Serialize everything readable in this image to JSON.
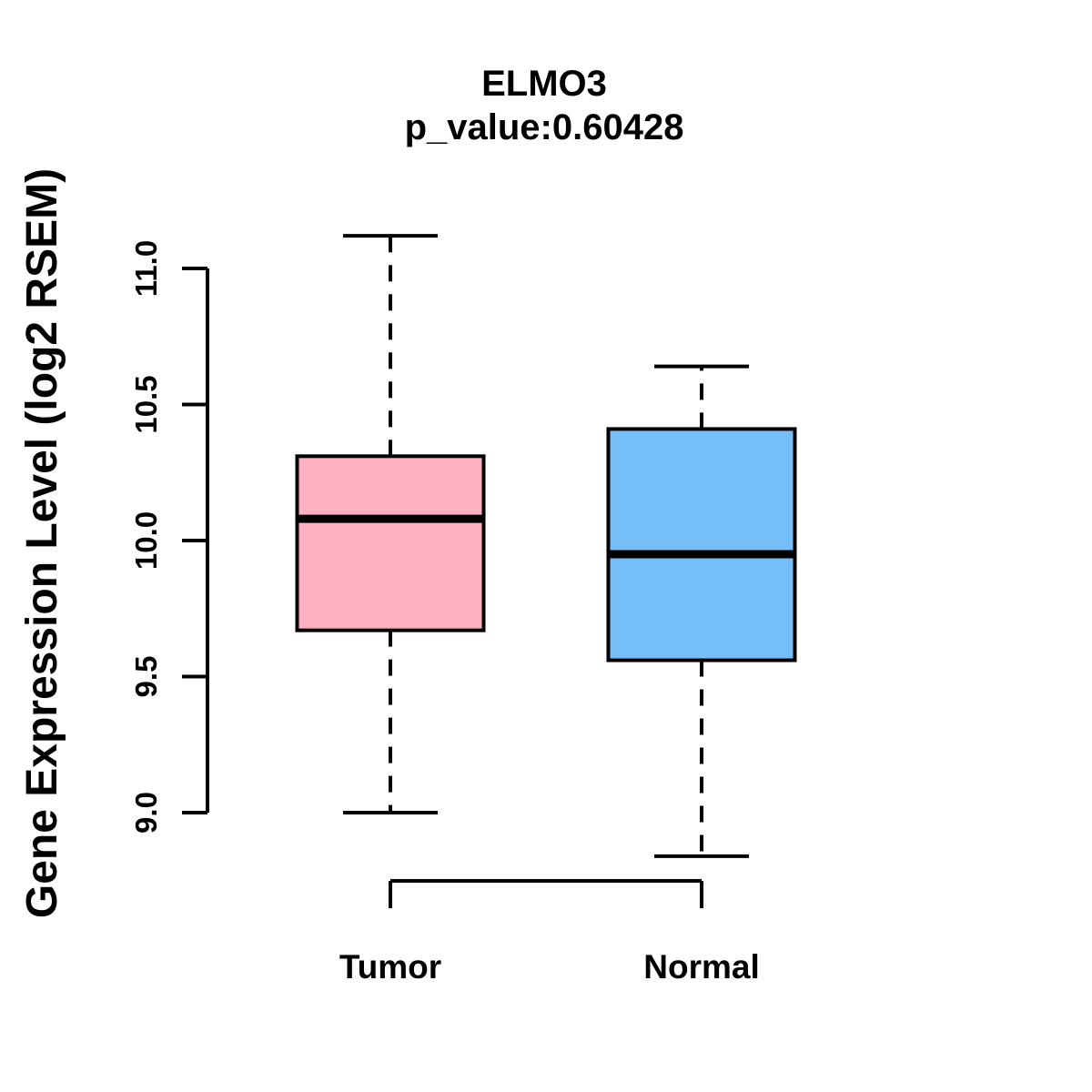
{
  "title": {
    "gene": "ELMO3",
    "p_value_line": "p_value:0.60428"
  },
  "chart_data": {
    "type": "boxplot",
    "title": "ELMO3",
    "subtitle": "p_value:0.60428",
    "ylabel": "Gene Expression Level (log2 RSEM)",
    "xlabel": "",
    "categories": [
      "Tumor",
      "Normal"
    ],
    "ylim": [
      9.0,
      11.0
    ],
    "yticks": [
      9.0,
      9.5,
      10.0,
      10.5,
      11.0
    ],
    "ytick_labels": [
      "9.0",
      "9.5",
      "10.0",
      "10.5",
      "11.0"
    ],
    "grid": false,
    "legend": "none",
    "series": [
      {
        "name": "Tumor",
        "color": "#FFB1C1",
        "whisker_low": 9.0,
        "q1": 9.67,
        "median": 10.08,
        "q3": 10.31,
        "whisker_high": 11.12
      },
      {
        "name": "Normal",
        "color": "#76BEF8",
        "whisker_low": 8.84,
        "q1": 9.56,
        "median": 9.95,
        "q3": 10.41,
        "whisker_high": 10.64
      }
    ],
    "colors": {
      "box_border": "#000000",
      "median": "#000000",
      "whisker": "#000000",
      "axis": "#000000",
      "background": "#ffffff"
    }
  }
}
